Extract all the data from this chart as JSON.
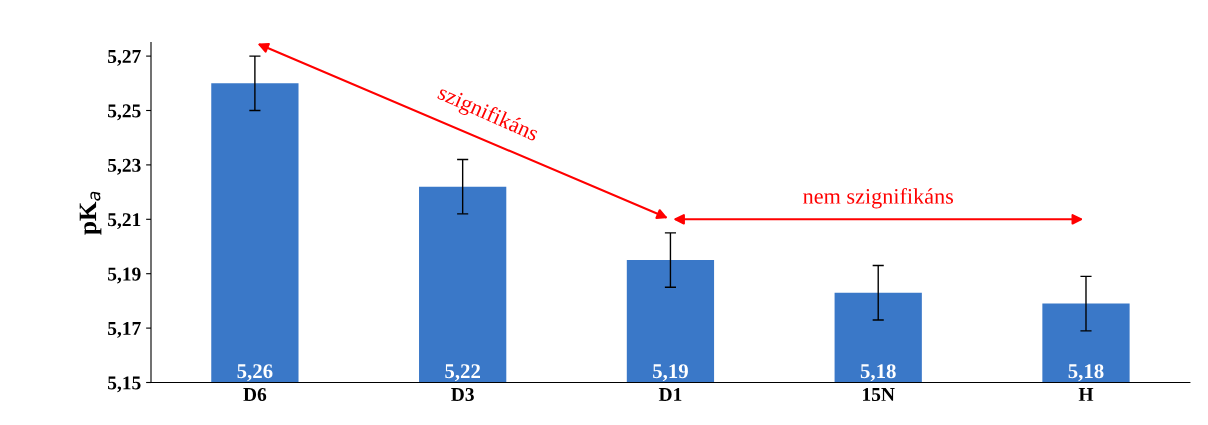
{
  "chart_data": {
    "type": "bar",
    "ylabel": "pK$_{a}$",
    "categories": [
      "D6",
      "D3",
      "D1",
      "15N",
      "H"
    ],
    "values": [
      5.26,
      5.222,
      5.195,
      5.183,
      5.179
    ],
    "errors": [
      0.01,
      0.01,
      0.01,
      0.01,
      0.01
    ],
    "value_labels": [
      "5,26",
      "5,22",
      "5,19",
      "5,18",
      "5,18"
    ],
    "color": "#3a78c8",
    "ylim": [
      5.15,
      5.275
    ],
    "yticks": [
      {
        "value": 5.15,
        "label": "5,15"
      },
      {
        "value": 5.17,
        "label": "5,17"
      },
      {
        "value": 5.19,
        "label": "5,19"
      },
      {
        "value": 5.21,
        "label": "5,21"
      },
      {
        "value": 5.23,
        "label": "5,23"
      },
      {
        "value": 5.25,
        "label": "5,25"
      },
      {
        "value": 5.27,
        "label": "5,27"
      }
    ],
    "grid": false,
    "annotations": [
      "szignifikáns",
      "nem szignifikáns"
    ]
  }
}
